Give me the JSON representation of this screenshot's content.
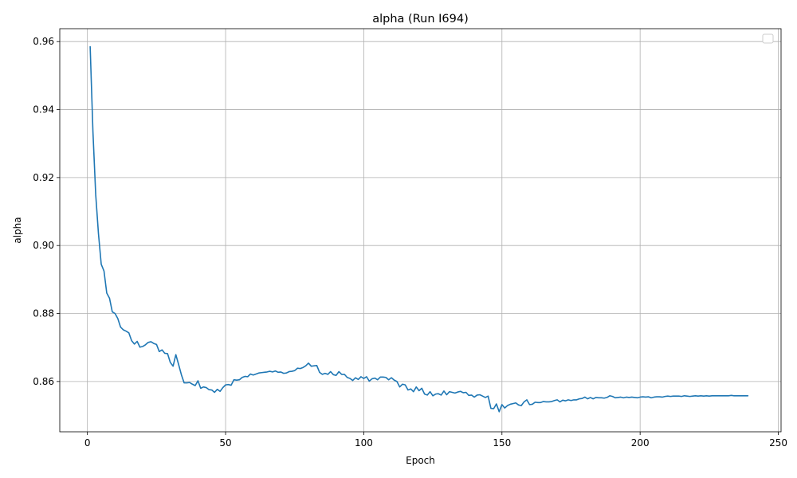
{
  "chart_data": {
    "type": "line",
    "title": "alpha (Run I694)",
    "xlabel": "Epoch",
    "ylabel": "alpha",
    "xlim": [
      -10,
      251
    ],
    "ylim": [
      0.8452,
      0.9638
    ],
    "xticks": [
      0,
      50,
      100,
      150,
      200,
      250
    ],
    "xtick_labels": [
      "0",
      "50",
      "100",
      "150",
      "200",
      "250"
    ],
    "yticks": [
      0.86,
      0.88,
      0.9,
      0.92,
      0.94,
      0.96
    ],
    "ytick_labels": [
      "0.86",
      "0.88",
      "0.90",
      "0.92",
      "0.94",
      "0.96"
    ],
    "grid": true,
    "legend": "top-right, empty",
    "series": [
      {
        "color": "#1f77b4",
        "points": [
          [
            1,
            0.9585
          ],
          [
            2,
            0.9335
          ],
          [
            3,
            0.915
          ],
          [
            4,
            0.9035
          ],
          [
            5,
            0.8945
          ],
          [
            6,
            0.8925
          ],
          [
            7,
            0.886
          ],
          [
            8,
            0.8845
          ],
          [
            9,
            0.8805
          ],
          [
            10,
            0.88
          ],
          [
            11,
            0.8785
          ],
          [
            12,
            0.876
          ],
          [
            13,
            0.8752
          ],
          [
            14,
            0.8748
          ],
          [
            15,
            0.8743
          ],
          [
            16,
            0.872
          ],
          [
            17,
            0.871
          ],
          [
            18,
            0.8718
          ],
          [
            19,
            0.8701
          ],
          [
            20,
            0.8703
          ],
          [
            21,
            0.8708
          ],
          [
            22,
            0.8715
          ],
          [
            23,
            0.8717
          ],
          [
            24,
            0.8712
          ],
          [
            25,
            0.8709
          ],
          [
            26,
            0.8688
          ],
          [
            27,
            0.8693
          ],
          [
            28,
            0.8683
          ],
          [
            29,
            0.8682
          ],
          [
            30,
            0.8656
          ],
          [
            31,
            0.8645
          ],
          [
            32,
            0.8679
          ],
          [
            33,
            0.865
          ],
          [
            34,
            0.862
          ],
          [
            35,
            0.8596
          ],
          [
            36,
            0.8596
          ],
          [
            37,
            0.8597
          ],
          [
            38,
            0.8592
          ],
          [
            39,
            0.8588
          ],
          [
            40,
            0.8602
          ],
          [
            41,
            0.858
          ],
          [
            42,
            0.8584
          ],
          [
            43,
            0.8582
          ],
          [
            44,
            0.8576
          ],
          [
            45,
            0.8575
          ],
          [
            46,
            0.8568
          ],
          [
            47,
            0.8577
          ],
          [
            48,
            0.8571
          ],
          [
            49,
            0.8582
          ],
          [
            50,
            0.859
          ],
          [
            51,
            0.8591
          ],
          [
            52,
            0.8589
          ],
          [
            53,
            0.8605
          ],
          [
            54,
            0.8604
          ],
          [
            55,
            0.8605
          ],
          [
            56,
            0.8612
          ],
          [
            57,
            0.8615
          ],
          [
            58,
            0.8614
          ],
          [
            59,
            0.8622
          ],
          [
            60,
            0.8619
          ],
          [
            61,
            0.8622
          ],
          [
            62,
            0.8625
          ],
          [
            63,
            0.8626
          ],
          [
            64,
            0.8627
          ],
          [
            65,
            0.8628
          ],
          [
            66,
            0.863
          ],
          [
            67,
            0.8628
          ],
          [
            68,
            0.8631
          ],
          [
            69,
            0.8627
          ],
          [
            70,
            0.8628
          ],
          [
            71,
            0.8624
          ],
          [
            72,
            0.8625
          ],
          [
            73,
            0.8629
          ],
          [
            74,
            0.863
          ],
          [
            75,
            0.8632
          ],
          [
            76,
            0.8639
          ],
          [
            77,
            0.8638
          ],
          [
            78,
            0.8641
          ],
          [
            79,
            0.8646
          ],
          [
            80,
            0.8654
          ],
          [
            81,
            0.8645
          ],
          [
            82,
            0.8646
          ],
          [
            83,
            0.8647
          ],
          [
            84,
            0.8627
          ],
          [
            85,
            0.8621
          ],
          [
            86,
            0.8624
          ],
          [
            87,
            0.8621
          ],
          [
            88,
            0.8629
          ],
          [
            89,
            0.862
          ],
          [
            90,
            0.8618
          ],
          [
            91,
            0.8629
          ],
          [
            92,
            0.8621
          ],
          [
            93,
            0.8621
          ],
          [
            94,
            0.8612
          ],
          [
            95,
            0.8609
          ],
          [
            96,
            0.8603
          ],
          [
            97,
            0.8611
          ],
          [
            98,
            0.8606
          ],
          [
            99,
            0.8614
          ],
          [
            100,
            0.8609
          ],
          [
            101,
            0.8614
          ],
          [
            102,
            0.8601
          ],
          [
            103,
            0.8608
          ],
          [
            104,
            0.861
          ],
          [
            105,
            0.8605
          ],
          [
            106,
            0.8613
          ],
          [
            107,
            0.8613
          ],
          [
            108,
            0.8612
          ],
          [
            109,
            0.8605
          ],
          [
            110,
            0.8611
          ],
          [
            111,
            0.8604
          ],
          [
            112,
            0.86
          ],
          [
            113,
            0.8584
          ],
          [
            114,
            0.8592
          ],
          [
            115,
            0.859
          ],
          [
            116,
            0.8575
          ],
          [
            117,
            0.8578
          ],
          [
            118,
            0.857
          ],
          [
            119,
            0.8584
          ],
          [
            120,
            0.8573
          ],
          [
            121,
            0.858
          ],
          [
            122,
            0.8563
          ],
          [
            123,
            0.856
          ],
          [
            124,
            0.857
          ],
          [
            125,
            0.8558
          ],
          [
            126,
            0.8563
          ],
          [
            127,
            0.8564
          ],
          [
            128,
            0.856
          ],
          [
            129,
            0.8572
          ],
          [
            130,
            0.8561
          ],
          [
            131,
            0.857
          ],
          [
            132,
            0.8568
          ],
          [
            133,
            0.8566
          ],
          [
            134,
            0.8569
          ],
          [
            135,
            0.8571
          ],
          [
            136,
            0.8567
          ],
          [
            137,
            0.8568
          ],
          [
            138,
            0.8559
          ],
          [
            139,
            0.856
          ],
          [
            140,
            0.8554
          ],
          [
            141,
            0.856
          ],
          [
            142,
            0.8561
          ],
          [
            143,
            0.8557
          ],
          [
            144,
            0.8553
          ],
          [
            145,
            0.8557
          ],
          [
            146,
            0.8521
          ],
          [
            147,
            0.852
          ],
          [
            148,
            0.8534
          ],
          [
            149,
            0.8511
          ],
          [
            150,
            0.8532
          ],
          [
            151,
            0.8522
          ],
          [
            152,
            0.8529
          ],
          [
            153,
            0.8533
          ],
          [
            154,
            0.8535
          ],
          [
            155,
            0.8537
          ],
          [
            156,
            0.8531
          ],
          [
            157,
            0.8529
          ],
          [
            158,
            0.854
          ],
          [
            159,
            0.8546
          ],
          [
            160,
            0.8532
          ],
          [
            161,
            0.8533
          ],
          [
            162,
            0.8539
          ],
          [
            163,
            0.8538
          ],
          [
            164,
            0.8538
          ],
          [
            165,
            0.8541
          ],
          [
            166,
            0.854
          ],
          [
            167,
            0.854
          ],
          [
            168,
            0.8541
          ],
          [
            169,
            0.8544
          ],
          [
            170,
            0.8546
          ],
          [
            171,
            0.854
          ],
          [
            172,
            0.8545
          ],
          [
            173,
            0.8543
          ],
          [
            174,
            0.8546
          ],
          [
            175,
            0.8544
          ],
          [
            176,
            0.8546
          ],
          [
            177,
            0.8546
          ],
          [
            178,
            0.8549
          ],
          [
            179,
            0.855
          ],
          [
            180,
            0.8554
          ],
          [
            181,
            0.8549
          ],
          [
            182,
            0.8553
          ],
          [
            183,
            0.8549
          ],
          [
            184,
            0.8553
          ],
          [
            185,
            0.8552
          ],
          [
            186,
            0.8552
          ],
          [
            187,
            0.8551
          ],
          [
            188,
            0.8553
          ],
          [
            189,
            0.8558
          ],
          [
            190,
            0.8556
          ],
          [
            191,
            0.8552
          ],
          [
            192,
            0.8553
          ],
          [
            193,
            0.8554
          ],
          [
            194,
            0.8552
          ],
          [
            195,
            0.8554
          ],
          [
            196,
            0.8553
          ],
          [
            197,
            0.8554
          ],
          [
            198,
            0.8553
          ],
          [
            199,
            0.8552
          ],
          [
            200,
            0.8554
          ],
          [
            201,
            0.8555
          ],
          [
            202,
            0.8554
          ],
          [
            203,
            0.8555
          ],
          [
            204,
            0.8552
          ],
          [
            205,
            0.8554
          ],
          [
            206,
            0.8555
          ],
          [
            207,
            0.8555
          ],
          [
            208,
            0.8554
          ],
          [
            209,
            0.8556
          ],
          [
            210,
            0.8557
          ],
          [
            211,
            0.8556
          ],
          [
            212,
            0.8557
          ],
          [
            213,
            0.8557
          ],
          [
            214,
            0.8557
          ],
          [
            215,
            0.8556
          ],
          [
            216,
            0.8558
          ],
          [
            217,
            0.8557
          ],
          [
            218,
            0.8556
          ],
          [
            219,
            0.8557
          ],
          [
            220,
            0.8558
          ],
          [
            221,
            0.8557
          ],
          [
            222,
            0.8558
          ],
          [
            223,
            0.8557
          ],
          [
            224,
            0.8558
          ],
          [
            225,
            0.8557
          ],
          [
            226,
            0.8558
          ],
          [
            227,
            0.8558
          ],
          [
            228,
            0.8558
          ],
          [
            229,
            0.8558
          ],
          [
            230,
            0.8558
          ],
          [
            231,
            0.8558
          ],
          [
            232,
            0.8558
          ],
          [
            233,
            0.8559
          ],
          [
            234,
            0.8558
          ],
          [
            235,
            0.8558
          ],
          [
            236,
            0.8558
          ],
          [
            237,
            0.8558
          ],
          [
            238,
            0.8558
          ],
          [
            239,
            0.8558
          ]
        ]
      }
    ]
  }
}
